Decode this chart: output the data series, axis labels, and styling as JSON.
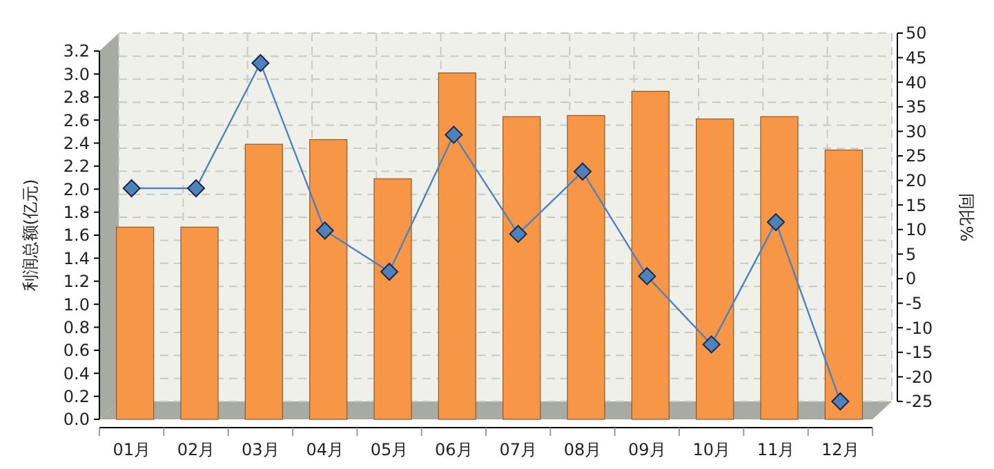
{
  "chart_data": {
    "type": "bar",
    "ylabel": "利润总额(亿元)",
    "y2label": "同比%",
    "categories": [
      "01月",
      "02月",
      "03月",
      "04月",
      "05月",
      "06月",
      "07月",
      "08月",
      "09月",
      "10月",
      "11月",
      "12月"
    ],
    "series": [
      {
        "color": "#f79646",
        "values": [
          1.67,
          1.67,
          2.39,
          2.43,
          2.09,
          3.01,
          2.63,
          2.64,
          2.85,
          2.61,
          2.63,
          2.34
        ]
      },
      {
        "type": "line",
        "axis": "y2",
        "color": "#4f81bd",
        "marker": "diamond",
        "values": [
          18.4,
          18.4,
          43.9,
          9.8,
          1.4,
          29.3,
          9.1,
          21.8,
          0.5,
          -13.4,
          11.5,
          -25
        ]
      }
    ],
    "ylim": [
      0,
      3.2
    ],
    "yticks": [
      {
        "value": 0,
        "label": "0.0"
      },
      0.2,
      0.4,
      0.6,
      0.8,
      {
        "value": 1,
        "label": "1.0"
      },
      1.2,
      1.4,
      1.6,
      1.8,
      {
        "value": 2,
        "label": "2.0"
      },
      2.2,
      2.4,
      2.6,
      2.8,
      {
        "value": 3,
        "label": "3.0"
      },
      3.2
    ],
    "y2lim": [
      -25,
      50
    ],
    "y2ticks": [
      -25,
      -20,
      -15,
      -10,
      -5,
      0,
      5,
      10,
      15,
      20,
      25,
      30,
      35,
      40,
      45,
      50
    ],
    "grid": true
  }
}
